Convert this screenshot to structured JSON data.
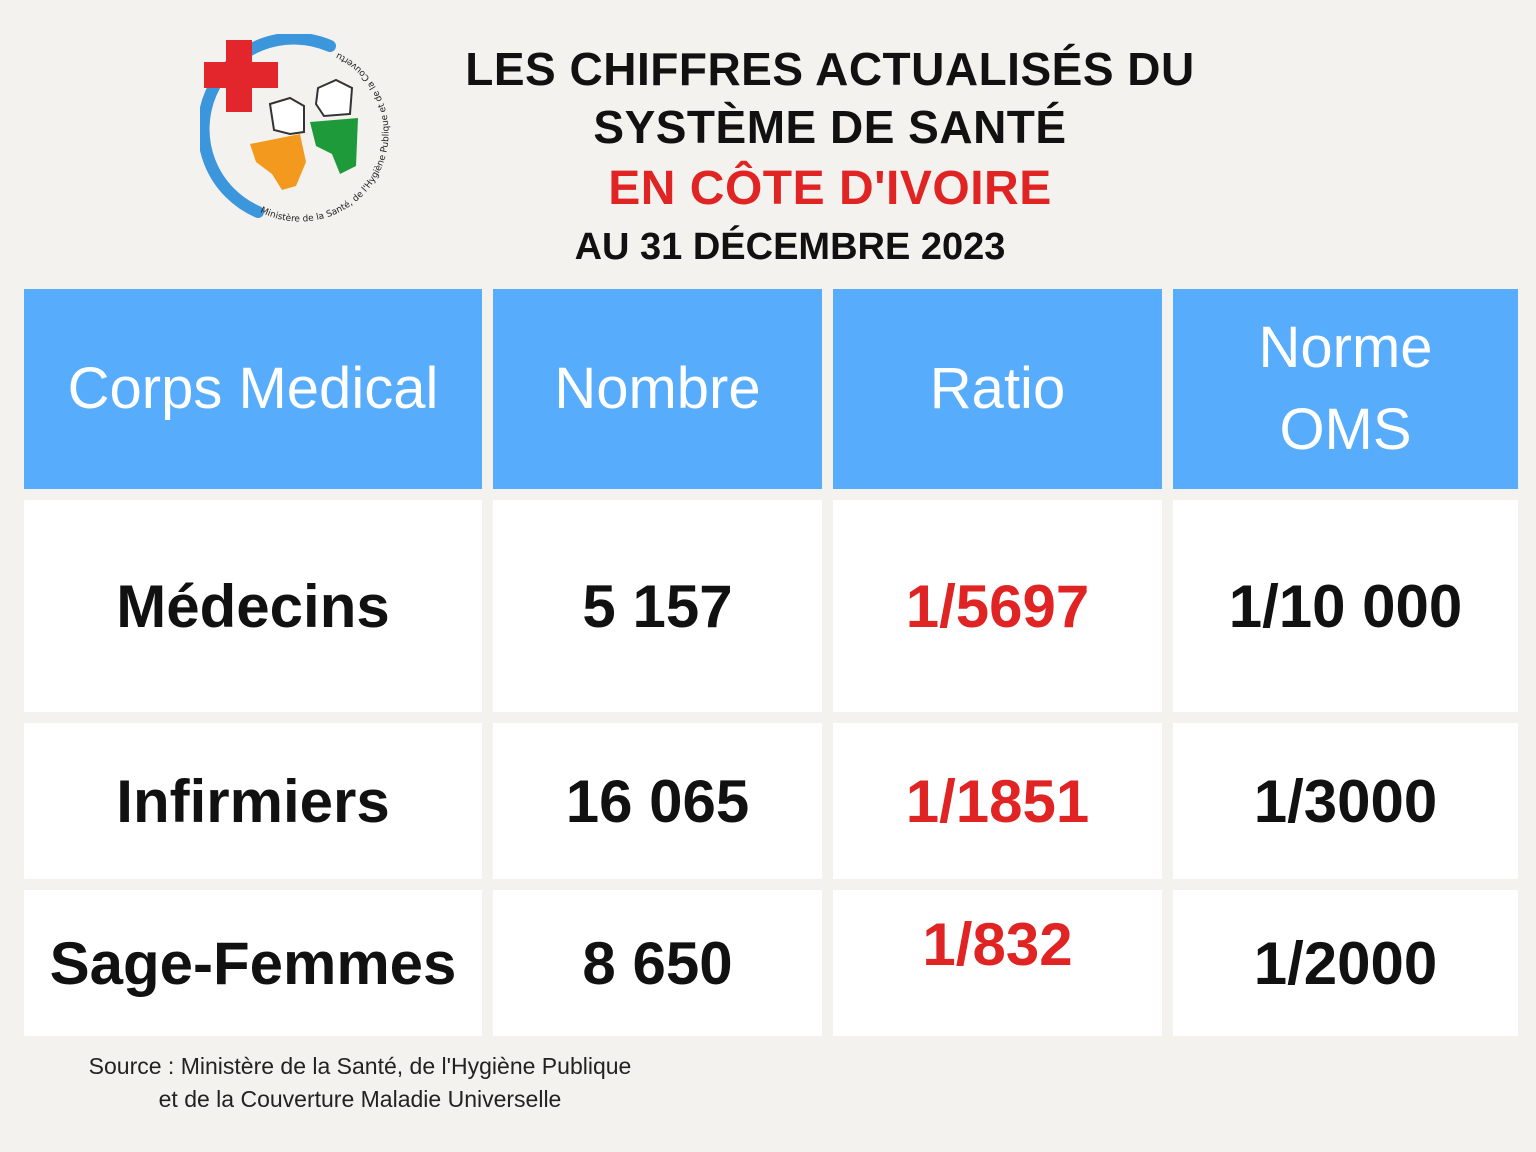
{
  "logo": {
    "ring_text": "Ministère de la Santé, de l'Hygiène Publique et de la Couverture Maladie Universelle",
    "colors": {
      "cross": "#e3262b",
      "ring": "#3b96dc",
      "orange": "#f39a1e",
      "green": "#1e9a3a"
    },
    "icons": [
      "red-cross-icon",
      "cote-divoire-map-icon"
    ]
  },
  "header": {
    "title_line1": "LES CHIFFRES ACTUALISÉS DU",
    "title_line2": "SYSTÈME DE SANTÉ",
    "title_country": "EN CÔTE D'IVOIRE",
    "date": "AU 31 DÉCEMBRE 2023"
  },
  "table": {
    "columns": [
      "Corps Medical",
      "Nombre",
      "Ratio",
      "Norme OMS"
    ],
    "rows": [
      {
        "corps": "Médecins",
        "nombre": "5 157",
        "ratio": "1/5697",
        "norme": "1/10 000"
      },
      {
        "corps": "Infirmiers",
        "nombre": "16 065",
        "ratio": "1/1851",
        "norme": "1/3000"
      },
      {
        "corps": "Sage-Femmes",
        "nombre": "8 650",
        "ratio": "1/832",
        "norme": "1/2000"
      }
    ]
  },
  "source": {
    "line1": "Source : Ministère de la Santé, de l'Hygiène Publique",
    "line2": "et de la Couverture Maladie Universelle"
  },
  "colors": {
    "header_bg": "#57acfb",
    "accent_red": "#e02424",
    "page_bg": "#f4f2ee",
    "cell_bg": "#ffffff"
  }
}
